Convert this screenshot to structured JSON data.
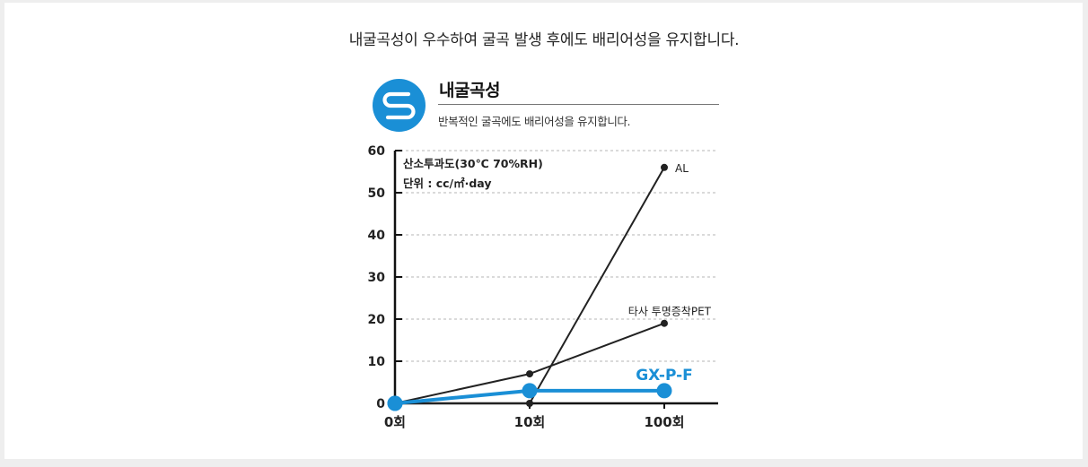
{
  "headline": "내굴곡성이 우수하여 굴곡 발생 후에도 배리어성을 유지합니다.",
  "logo": {
    "icon": "s-logo-icon",
    "color": "#1a8fd6"
  },
  "section": {
    "title": "내굴곡성",
    "subtitle": "반복적인 굴곡에도 배리어성을 유지합니다."
  },
  "chart_data": {
    "type": "line",
    "categories": [
      "0회",
      "10회",
      "100회"
    ],
    "ylim": [
      0,
      60
    ],
    "yticks": [
      "0",
      "10",
      "20",
      "30",
      "40",
      "50",
      "60"
    ],
    "grid": "horizontal dashed",
    "notes": [
      "산소투과도(30℃ 70%RH)",
      "단위 : cc/㎡·day"
    ],
    "series": [
      {
        "name": "AL",
        "values": [
          0,
          0,
          56
        ],
        "color": "#222222"
      },
      {
        "name": "타사 투명증착PET",
        "values": [
          0,
          7,
          19
        ],
        "color": "#222222"
      },
      {
        "name": "GX-P-F",
        "values": [
          0,
          3,
          3
        ],
        "color": "#1a8fd6"
      }
    ]
  }
}
